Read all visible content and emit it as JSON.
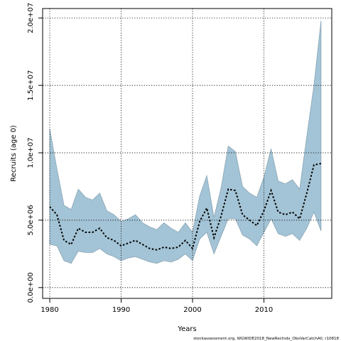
{
  "chart_data": {
    "type": "area",
    "title": "",
    "xlabel": "Years",
    "ylabel": "Recruits (age 0)",
    "xlim": [
      1979,
      2019.5
    ],
    "ylim": [
      -800000,
      20700000
    ],
    "grid": true,
    "x_ticks": [
      1980,
      1990,
      2000,
      2010
    ],
    "x_tick_labels": [
      "1980",
      "1990",
      "2000",
      "2010"
    ],
    "y_ticks": [
      0,
      5000000,
      10000000,
      15000000,
      20000000
    ],
    "y_tick_labels": [
      "0.0e+00",
      "5.0e+06",
      "1.0e+07",
      "1.5e+07",
      "2.0e+07"
    ],
    "band_color": "#a3c4d6",
    "band_edge_color": "#8aa5b4",
    "line_color": "#000000",
    "x": [
      1980,
      1981,
      1982,
      1983,
      1984,
      1985,
      1986,
      1987,
      1988,
      1989,
      1990,
      1991,
      1992,
      1993,
      1994,
      1995,
      1996,
      1997,
      1998,
      1999,
      2000,
      2001,
      2002,
      2003,
      2004,
      2005,
      2006,
      2007,
      2008,
      2009,
      2010,
      2011,
      2012,
      2013,
      2014,
      2015,
      2016,
      2017,
      2018
    ],
    "series": [
      {
        "values": [
          11800000,
          8800000,
          6100000,
          5800000,
          7300000,
          6700000,
          6500000,
          7000000,
          5700000,
          5400000,
          4900000,
          5100000,
          5400000,
          4800000,
          4500000,
          4300000,
          4800000,
          4400000,
          4100000,
          4800000,
          4100000,
          6800000,
          8300000,
          5200000,
          7400000,
          10500000,
          10100000,
          7500000,
          7000000,
          6700000,
          8200000,
          10300000,
          7900000,
          7700000,
          8000000,
          7300000,
          11200000,
          15000000,
          19800000
        ]
      },
      {
        "values": [
          6000000,
          5400000,
          3500000,
          3200000,
          4400000,
          4100000,
          4100000,
          4400000,
          3700000,
          3500000,
          3100000,
          3300000,
          3500000,
          3200000,
          2900000,
          2800000,
          3000000,
          2900000,
          3000000,
          3500000,
          2900000,
          4900000,
          5900000,
          3700000,
          5300000,
          7300000,
          7200000,
          5400000,
          5000000,
          4600000,
          5700000,
          7200000,
          5600000,
          5400000,
          5600000,
          5100000,
          7000000,
          9100000,
          9200000
        ]
      },
      {
        "values": [
          3200000,
          3100000,
          2000000,
          1800000,
          2700000,
          2600000,
          2600000,
          2900000,
          2500000,
          2300000,
          2000000,
          2200000,
          2300000,
          2100000,
          1900000,
          1800000,
          2000000,
          1900000,
          2100000,
          2500000,
          2000000,
          3600000,
          4100000,
          2500000,
          3800000,
          5100000,
          5100000,
          3900000,
          3600000,
          3100000,
          4100000,
          5100000,
          4000000,
          3800000,
          4000000,
          3500000,
          4400000,
          5600000,
          4200000
        ]
      }
    ]
  },
  "footer_text": "stockassessment.org, WGWIDE2018_NewRecIndx_ObsVarCatchAll, r10818"
}
